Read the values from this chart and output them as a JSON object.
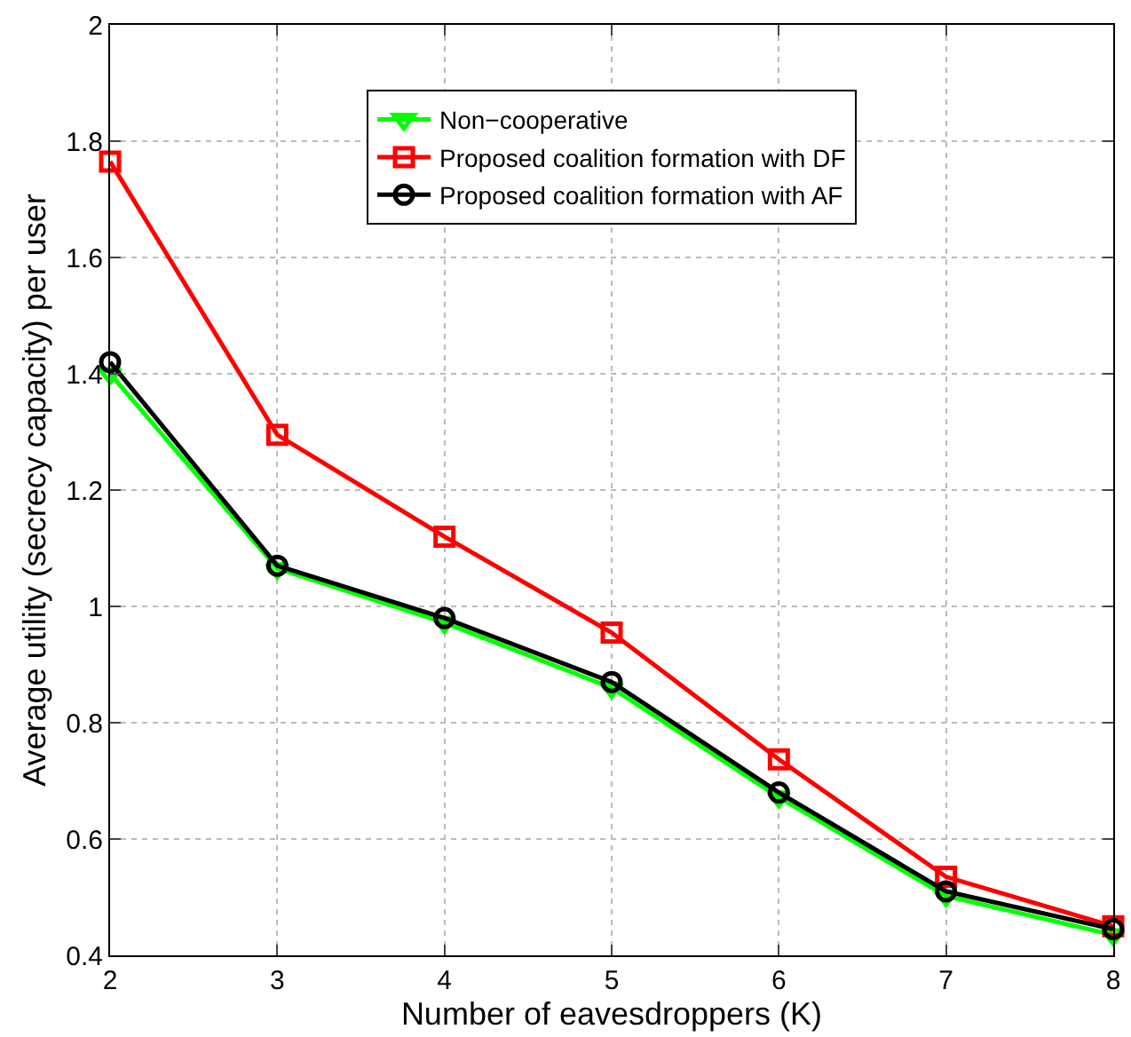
{
  "chart_data": {
    "type": "line",
    "xlabel": "Number of eavesdroppers (K)",
    "ylabel": "Average utility (secrecy capacity) per user",
    "x": [
      2,
      3,
      4,
      5,
      6,
      7,
      8
    ],
    "series": [
      {
        "name": "Non−cooperative",
        "color": "#00ff00",
        "marker": "triangle",
        "values": [
          1.4,
          1.065,
          0.972,
          0.86,
          0.672,
          0.502,
          0.435
        ]
      },
      {
        "name": "Proposed coalition formation with DF",
        "color": "#ff0000",
        "marker": "square",
        "values": [
          1.765,
          1.295,
          1.12,
          0.955,
          0.737,
          0.535,
          0.45
        ]
      },
      {
        "name": "Proposed coalition formation with AF",
        "color": "#000000",
        "marker": "circle",
        "values": [
          1.42,
          1.07,
          0.98,
          0.87,
          0.68,
          0.51,
          0.445
        ]
      }
    ],
    "xlim": [
      2,
      8
    ],
    "xticks": [
      2,
      3,
      4,
      5,
      6,
      7,
      8
    ],
    "ylim": [
      0.4,
      2
    ],
    "yticks": [
      0.4,
      0.6,
      0.8,
      1,
      1.2,
      1.4,
      1.6,
      1.8,
      2
    ],
    "grid": true,
    "legend": "top",
    "line_style": "solid"
  }
}
